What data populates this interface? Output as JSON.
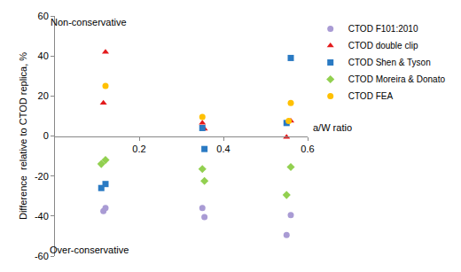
{
  "chart_data": {
    "type": "scatter",
    "x_label": "a/W ratio",
    "y_label": "Difference  relative to CTOD replica, %",
    "xlim": [
      0,
      0.6
    ],
    "xticks": [
      0.2,
      0.4,
      0.6
    ],
    "ylim": [
      -60,
      60
    ],
    "yticks": [
      -60,
      -40,
      -20,
      0,
      20,
      40,
      60
    ],
    "grid": false,
    "legend": "right",
    "annotations": [
      {
        "text": "Non-conservative",
        "x": 0.08,
        "y": 57
      },
      {
        "text": "Over-conservative",
        "x": 0.08,
        "y": -57
      }
    ],
    "series": [
      {
        "name": "CTOD F101:2010",
        "color": "#a99bd4",
        "marker": "circle",
        "x": [
          0.115,
          0.12,
          0.35,
          0.355,
          0.55,
          0.56
        ],
        "values": [
          -37.5,
          -36,
          -36,
          -40.5,
          -49.5,
          -39.5
        ]
      },
      {
        "name": "CTOD double clip",
        "color": "#e31a1c",
        "marker": "triangle-up",
        "x": [
          0.115,
          0.12,
          0.35,
          0.355,
          0.55,
          0.56
        ],
        "values": [
          16.5,
          42,
          6.5,
          3.5,
          -0.5,
          7.5
        ]
      },
      {
        "name": "CTOD Shen & Tyson",
        "color": "#2a7ac3",
        "marker": "square",
        "x": [
          0.11,
          0.12,
          0.35,
          0.355,
          0.55,
          0.56
        ],
        "values": [
          -26,
          -24,
          4,
          -6.5,
          6.5,
          39
        ]
      },
      {
        "name": "CTOD Moreira & Donato",
        "color": "#92d050",
        "marker": "diamond",
        "x": [
          0.11,
          0.12,
          0.35,
          0.355,
          0.55,
          0.56
        ],
        "values": [
          -14,
          -12,
          -16.5,
          -22.5,
          -29.5,
          -15.5
        ]
      },
      {
        "name": "CTOD FEA",
        "color": "#ffc000",
        "marker": "circle",
        "x": [
          0.12,
          0.35,
          0.555,
          0.56
        ],
        "values": [
          25,
          9.5,
          7.5,
          16.5
        ]
      }
    ]
  }
}
